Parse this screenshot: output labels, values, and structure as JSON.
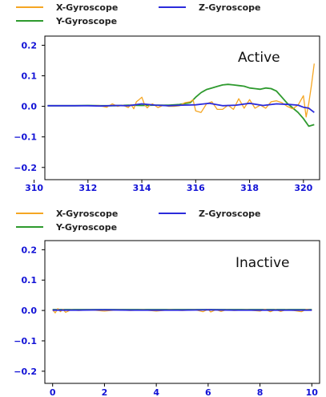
{
  "chart_data": [
    {
      "type": "line",
      "xlim": [
        310.4,
        320.6
      ],
      "ylim": [
        -0.24,
        0.23
      ],
      "x_ticks": [
        310,
        312,
        314,
        316,
        318,
        320
      ],
      "x_tick_labels": [
        "310",
        "312",
        "314",
        "316",
        "318",
        "320"
      ],
      "y_ticks": [
        0.2,
        0.1,
        0.0,
        -0.1,
        -0.2
      ],
      "y_tick_labels": [
        "0.2",
        "0.1",
        "0.0",
        "−0.1",
        "−0.2"
      ],
      "annotation": "Active",
      "legend": {
        "placement": "top-left",
        "entries": [
          "X-Gyroscope",
          "Y-Gyroscope",
          "Z-Gyroscope"
        ]
      },
      "series": [
        {
          "name": "X-Gyroscope",
          "color": "#f5a623",
          "x": [
            310.5,
            311.0,
            311.5,
            312.0,
            312.4,
            312.7,
            312.9,
            313.1,
            313.3,
            313.5,
            313.6,
            313.7,
            313.8,
            313.9,
            314.0,
            314.1,
            314.2,
            314.3,
            314.4,
            314.6,
            314.8,
            315.0,
            315.2,
            315.4,
            315.6,
            315.8,
            315.9,
            316.0,
            316.2,
            316.4,
            316.6,
            316.8,
            317.0,
            317.2,
            317.4,
            317.6,
            317.8,
            318.0,
            318.2,
            318.4,
            318.6,
            318.8,
            319.0,
            319.2,
            319.4,
            319.6,
            319.8,
            320.0,
            320.1,
            320.2,
            320.3,
            320.4
          ],
          "y": [
            0.002,
            0.002,
            0.002,
            0.002,
            0.003,
            -0.003,
            0.008,
            0.0,
            0.004,
            -0.004,
            0.006,
            -0.008,
            0.015,
            0.022,
            0.03,
            0.006,
            -0.005,
            0.004,
            0.008,
            -0.004,
            0.004,
            0.0,
            0.0,
            0.002,
            0.012,
            0.015,
            0.022,
            -0.015,
            -0.02,
            0.008,
            0.015,
            -0.01,
            -0.01,
            0.004,
            -0.01,
            0.025,
            -0.006,
            0.022,
            -0.006,
            0.004,
            -0.006,
            0.015,
            0.018,
            0.012,
            0.0,
            -0.008,
            0.004,
            0.035,
            -0.035,
            0.01,
            0.07,
            0.14
          ]
        },
        {
          "name": "Y-Gyroscope",
          "color": "#2e9a2e",
          "x": [
            310.5,
            311.0,
            311.5,
            312.0,
            312.5,
            313.0,
            313.5,
            314.0,
            314.5,
            315.0,
            315.4,
            315.8,
            316.0,
            316.2,
            316.4,
            316.6,
            316.8,
            317.0,
            317.2,
            317.4,
            317.6,
            317.8,
            318.0,
            318.2,
            318.4,
            318.6,
            318.8,
            319.0,
            319.2,
            319.4,
            319.6,
            319.8,
            320.0,
            320.2,
            320.4
          ],
          "y": [
            0.002,
            0.002,
            0.002,
            0.003,
            0.002,
            0.002,
            0.004,
            0.003,
            0.004,
            0.004,
            0.006,
            0.012,
            0.03,
            0.045,
            0.055,
            0.06,
            0.065,
            0.07,
            0.072,
            0.07,
            0.068,
            0.066,
            0.06,
            0.058,
            0.056,
            0.06,
            0.058,
            0.05,
            0.03,
            0.01,
            -0.005,
            -0.02,
            -0.04,
            -0.065,
            -0.06
          ]
        },
        {
          "name": "Z-Gyroscope",
          "color": "#2b2bdb",
          "x": [
            310.5,
            311.0,
            311.5,
            312.0,
            312.5,
            313.0,
            313.5,
            314.0,
            314.5,
            315.0,
            315.5,
            316.0,
            316.5,
            317.0,
            317.5,
            318.0,
            318.5,
            319.0,
            319.5,
            319.8,
            320.0,
            320.2,
            320.4
          ],
          "y": [
            0.002,
            0.002,
            0.002,
            0.002,
            0.001,
            0.003,
            0.002,
            0.008,
            0.004,
            0.002,
            0.004,
            0.005,
            0.01,
            0.002,
            0.004,
            0.01,
            0.003,
            0.008,
            0.006,
            0.004,
            -0.003,
            -0.006,
            -0.02
          ]
        }
      ]
    },
    {
      "type": "line",
      "xlim": [
        -0.3,
        10.3
      ],
      "ylim": [
        -0.24,
        0.23
      ],
      "x_ticks": [
        0,
        2,
        4,
        6,
        8,
        10
      ],
      "x_tick_labels": [
        "0",
        "2",
        "4",
        "6",
        "8",
        "10"
      ],
      "y_ticks": [
        0.2,
        0.1,
        0.0,
        -0.1,
        -0.2
      ],
      "y_tick_labels": [
        "0.2",
        "0.1",
        "0.0",
        "−0.1",
        "−0.2"
      ],
      "annotation": "Inactive",
      "legend": {
        "placement": "top-left",
        "entries": [
          "X-Gyroscope",
          "Y-Gyroscope",
          "Z-Gyroscope"
        ]
      },
      "series": [
        {
          "name": "X-Gyroscope",
          "color": "#f5a623",
          "x": [
            0.0,
            0.1,
            0.2,
            0.3,
            0.4,
            0.5,
            0.7,
            1.0,
            1.5,
            2.0,
            2.5,
            3.0,
            3.5,
            4.0,
            4.5,
            5.0,
            5.5,
            5.8,
            6.0,
            6.1,
            6.3,
            6.5,
            6.7,
            7.0,
            7.5,
            8.0,
            8.2,
            8.4,
            8.6,
            8.8,
            9.0,
            9.3,
            9.6,
            9.8,
            10.0
          ],
          "y": [
            0.002,
            -0.008,
            0.006,
            -0.004,
            0.004,
            -0.006,
            0.002,
            0.0,
            0.002,
            -0.002,
            0.002,
            0.0,
            0.002,
            -0.002,
            0.002,
            0.0,
            0.002,
            -0.004,
            0.004,
            -0.005,
            0.003,
            -0.003,
            0.002,
            0.0,
            0.002,
            -0.002,
            0.004,
            -0.004,
            0.003,
            -0.003,
            0.002,
            0.0,
            -0.004,
            0.004,
            0.0
          ]
        },
        {
          "name": "Y-Gyroscope",
          "color": "#2e9a2e",
          "x": [
            0.0,
            2.0,
            4.0,
            6.0,
            8.0,
            10.0
          ],
          "y": [
            0.003,
            0.003,
            0.003,
            0.003,
            0.003,
            0.003
          ]
        },
        {
          "name": "Z-Gyroscope",
          "color": "#2b2bdb",
          "x": [
            0.0,
            1.0,
            2.0,
            3.0,
            4.0,
            5.0,
            6.0,
            7.0,
            8.0,
            9.0,
            10.0
          ],
          "y": [
            0.001,
            0.001,
            0.002,
            0.001,
            0.001,
            0.001,
            0.002,
            0.001,
            0.001,
            0.001,
            0.001
          ]
        }
      ]
    }
  ]
}
